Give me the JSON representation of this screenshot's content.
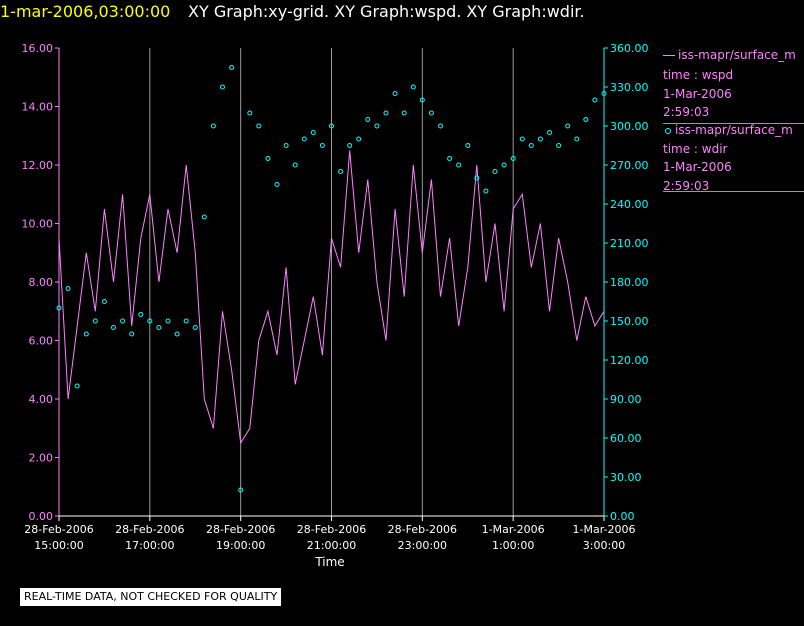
{
  "header": {
    "timestamp": "1-mar-2006,03:00:00",
    "title": "XY Graph:xy-grid.  XY Graph:wspd.  XY Graph:wdir."
  },
  "legend": {
    "wspd": {
      "line1": "iss-mapr/surface_m",
      "line2": "time : wspd",
      "line3": "1-Mar-2006",
      "line4": "2:59:03"
    },
    "wdir": {
      "line1": "iss-mapr/surface_m",
      "line2": "time : wdir",
      "line3": "1-Mar-2006",
      "line4": "2:59:03"
    }
  },
  "footer": {
    "qc_note": "REAL-TIME DATA, NOT CHECKED FOR QUALITY"
  },
  "colors": {
    "wspd": "#ff80ff",
    "wdir": "#00ffff",
    "left_axis": "#ff80ff",
    "right_axis": "#00ffff",
    "grid": "#9a9a9a",
    "text": "#ffffff"
  },
  "chart_data": {
    "type": "line",
    "xlabel": "Time",
    "x_ticks": [
      [
        "28-Feb-2006",
        "15:00:00"
      ],
      [
        "28-Feb-2006",
        "17:00:00"
      ],
      [
        "28-Feb-2006",
        "19:00:00"
      ],
      [
        "28-Feb-2006",
        "21:00:00"
      ],
      [
        "28-Feb-2006",
        "23:00:00"
      ],
      [
        "1-Mar-2006",
        "1:00:00"
      ],
      [
        "1-Mar-2006",
        "3:00:00"
      ]
    ],
    "x_tick_hours": [
      0,
      2,
      4,
      6,
      8,
      10,
      12
    ],
    "xlim_hours": [
      0,
      12
    ],
    "grid": "vertical",
    "y_left": {
      "ylim": [
        0,
        16
      ],
      "ticks": [
        "0.00",
        "2.00",
        "4.00",
        "6.00",
        "8.00",
        "10.00",
        "12.00",
        "14.00",
        "16.00"
      ]
    },
    "y_right": {
      "ylim": [
        0,
        360
      ],
      "ticks": [
        "0.00",
        "30.00",
        "60.00",
        "90.00",
        "120.00",
        "150.00",
        "180.00",
        "210.00",
        "240.00",
        "270.00",
        "300.00",
        "330.00",
        "360.00"
      ]
    },
    "series": [
      {
        "name": "wspd",
        "axis": "left",
        "style": "line",
        "x_hours": [
          0.0,
          0.2,
          0.4,
          0.6,
          0.8,
          1.0,
          1.2,
          1.4,
          1.6,
          1.8,
          2.0,
          2.2,
          2.4,
          2.6,
          2.8,
          3.0,
          3.2,
          3.4,
          3.6,
          3.8,
          4.0,
          4.2,
          4.4,
          4.6,
          4.8,
          5.0,
          5.2,
          5.4,
          5.6,
          5.8,
          6.0,
          6.2,
          6.4,
          6.6,
          6.8,
          7.0,
          7.2,
          7.4,
          7.6,
          7.8,
          8.0,
          8.2,
          8.4,
          8.6,
          8.8,
          9.0,
          9.2,
          9.4,
          9.6,
          9.8,
          10.0,
          10.2,
          10.4,
          10.6,
          10.8,
          11.0,
          11.2,
          11.4,
          11.6,
          11.8,
          12.0
        ],
        "values": [
          9.5,
          4.0,
          6.5,
          9.0,
          7.0,
          10.5,
          8.0,
          11.0,
          6.5,
          9.5,
          11.0,
          8.0,
          10.5,
          9.0,
          12.0,
          9.0,
          4.0,
          3.0,
          7.0,
          5.0,
          2.5,
          3.0,
          6.0,
          7.0,
          5.5,
          8.5,
          4.5,
          6.0,
          7.5,
          5.5,
          9.5,
          8.5,
          12.5,
          9.0,
          11.5,
          8.0,
          6.0,
          10.5,
          7.5,
          12.0,
          9.0,
          11.5,
          7.5,
          9.5,
          6.5,
          8.5,
          12.0,
          8.0,
          10.0,
          7.0,
          10.5,
          11.0,
          8.5,
          10.0,
          7.0,
          9.5,
          8.0,
          6.0,
          7.5,
          6.5,
          7.0
        ]
      },
      {
        "name": "wdir",
        "axis": "right",
        "style": "points",
        "x_hours": [
          0.0,
          0.2,
          0.4,
          0.6,
          0.8,
          1.0,
          1.2,
          1.4,
          1.6,
          1.8,
          2.0,
          2.2,
          2.4,
          2.6,
          2.8,
          3.0,
          3.2,
          3.4,
          3.6,
          3.8,
          4.0,
          4.2,
          4.4,
          4.6,
          4.8,
          5.0,
          5.2,
          5.4,
          5.6,
          5.8,
          6.0,
          6.2,
          6.4,
          6.6,
          6.8,
          7.0,
          7.2,
          7.4,
          7.6,
          7.8,
          8.0,
          8.2,
          8.4,
          8.6,
          8.8,
          9.0,
          9.2,
          9.4,
          9.6,
          9.8,
          10.0,
          10.2,
          10.4,
          10.6,
          10.8,
          11.0,
          11.2,
          11.4,
          11.6,
          11.8,
          12.0
        ],
        "values": [
          160,
          175,
          100,
          140,
          150,
          165,
          145,
          150,
          140,
          155,
          150,
          145,
          150,
          140,
          150,
          145,
          230,
          300,
          330,
          345,
          20,
          310,
          300,
          275,
          255,
          285,
          270,
          290,
          295,
          285,
          300,
          265,
          285,
          290,
          305,
          300,
          310,
          325,
          310,
          330,
          320,
          310,
          300,
          275,
          270,
          285,
          260,
          250,
          265,
          270,
          275,
          290,
          285,
          290,
          295,
          285,
          300,
          290,
          305,
          320,
          325
        ]
      }
    ]
  }
}
